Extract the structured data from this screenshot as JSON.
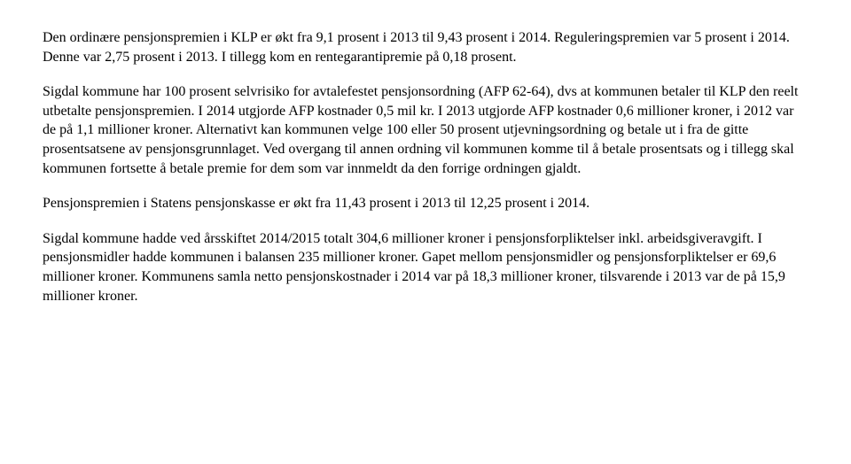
{
  "document": {
    "p1": "Den ordinære pensjonspremien i KLP er økt fra 9,1 prosent i 2013 til 9,43 prosent i 2014. Reguleringspremien var 5 prosent i 2014. Denne var 2,75 prosent i 2013. I tillegg kom en rentegarantipremie på 0,18 prosent.",
    "p2": "Sigdal kommune har 100 prosent selvrisiko for avtalefestet pensjonsordning (AFP 62-64), dvs at kommunen betaler til KLP den reelt utbetalte pensjonspremien. I 2014 utgjorde AFP kostnader 0,5 mil kr. I 2013 utgjorde AFP kostnader 0,6 millioner kroner, i 2012 var de på 1,1 millioner kroner. Alternativt kan kommunen velge 100 eller 50 prosent utjevningsordning og betale ut i fra de gitte prosentsatsene av pensjonsgrunnlaget. Ved overgang til annen ordning vil kommunen komme til å betale prosentsats og i tillegg skal kommunen fortsette å betale premie for dem som var innmeldt da den forrige ordningen gjaldt.",
    "p3": "Pensjonspremien i Statens pensjonskasse er økt fra 11,43 prosent i 2013 til 12,25 prosent i 2014.",
    "p4": "Sigdal kommune hadde ved årsskiftet 2014/2015 totalt 304,6 millioner kroner i pensjonsforpliktelser inkl. arbeidsgiveravgift. I pensjonsmidler hadde kommunen i balansen 235 millioner kroner. Gapet mellom pensjonsmidler og pensjonsforpliktelser er 69,6 millioner kroner. Kommunens samla netto pensjonskostnader i 2014 var på 18,3 millioner kroner, tilsvarende i 2013 var de på 15,9 millioner kroner."
  },
  "style": {
    "font_family": "Times New Roman",
    "font_size_pt": 12,
    "text_color": "#000000",
    "background_color": "#ffffff",
    "line_height": 1.35
  }
}
